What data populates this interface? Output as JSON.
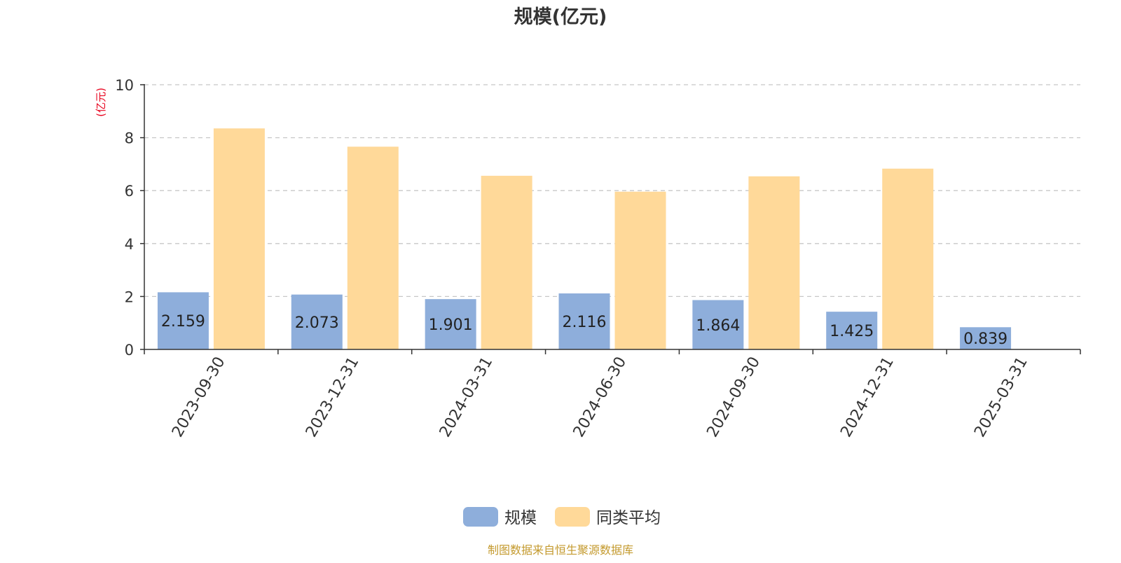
{
  "chart_data": {
    "type": "bar",
    "title": "规模(亿元)",
    "ylabel": "(亿元)",
    "xlabel": "",
    "categories": [
      "2023-09-30",
      "2023-12-31",
      "2024-03-31",
      "2024-06-30",
      "2024-09-30",
      "2024-12-31",
      "2025-03-31"
    ],
    "series": [
      {
        "name": "规模",
        "color": "#8eaedb",
        "values": [
          2.159,
          2.073,
          1.901,
          2.116,
          1.864,
          1.425,
          0.839
        ],
        "data_labels": [
          "2.159",
          "2.073",
          "1.901",
          "2.116",
          "1.864",
          "1.425",
          "0.839"
        ]
      },
      {
        "name": "同类平均",
        "color": "#ffd999",
        "values": [
          8.35,
          7.66,
          6.56,
          5.96,
          6.54,
          6.83,
          null
        ]
      }
    ],
    "ylim": [
      0,
      10
    ],
    "yticks": [
      0,
      2,
      4,
      6,
      8,
      10
    ],
    "ytick_labels": [
      "0",
      "2",
      "4",
      "6",
      "8",
      "10"
    ],
    "grid": true,
    "legend_position": "bottom-center",
    "ylabel_color": "#e8001c"
  },
  "footer": {
    "source": "制图数据来自恒生聚源数据库",
    "color": "#c49a2e"
  }
}
